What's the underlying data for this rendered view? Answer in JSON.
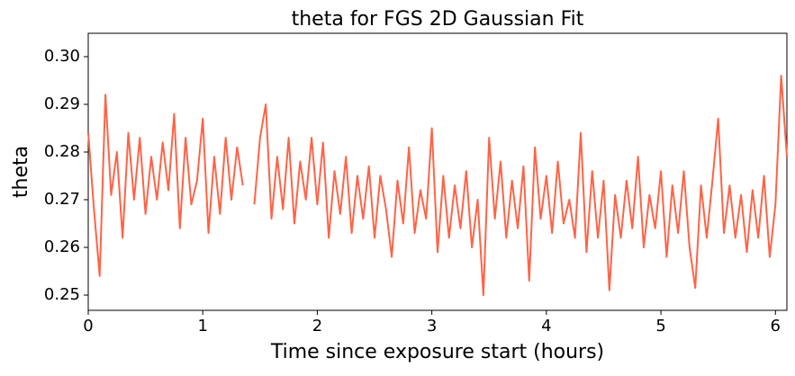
{
  "chart_data": {
    "type": "line",
    "title": "theta for FGS 2D Gaussian Fit",
    "xlabel": "Time since exposure start (hours)",
    "ylabel": "theta",
    "x": [
      0,
      0.05,
      0.1,
      0.15,
      0.2,
      0.25,
      0.3,
      0.35,
      0.4,
      0.45,
      0.5,
      0.55,
      0.6,
      0.65,
      0.7,
      0.75,
      0.8,
      0.85,
      0.9,
      0.95,
      1.0,
      1.05,
      1.1,
      1.15,
      1.2,
      1.25,
      1.3,
      1.35,
      1.4,
      1.45,
      1.5,
      1.55,
      1.6,
      1.65,
      1.7,
      1.75,
      1.8,
      1.85,
      1.9,
      1.95,
      2.0,
      2.05,
      2.1,
      2.15,
      2.2,
      2.25,
      2.3,
      2.35,
      2.4,
      2.45,
      2.5,
      2.55,
      2.6,
      2.65,
      2.7,
      2.75,
      2.8,
      2.85,
      2.9,
      2.95,
      3.0,
      3.05,
      3.1,
      3.15,
      3.2,
      3.25,
      3.3,
      3.35,
      3.4,
      3.45,
      3.5,
      3.55,
      3.6,
      3.65,
      3.7,
      3.75,
      3.8,
      3.85,
      3.9,
      3.95,
      4.0,
      4.05,
      4.1,
      4.15,
      4.2,
      4.25,
      4.3,
      4.35,
      4.4,
      4.45,
      4.5,
      4.55,
      4.6,
      4.65,
      4.7,
      4.75,
      4.8,
      4.85,
      4.9,
      4.95,
      5.0,
      5.05,
      5.1,
      5.15,
      5.2,
      5.25,
      5.3,
      5.35,
      5.4,
      5.45,
      5.5,
      5.55,
      5.6,
      5.65,
      5.7,
      5.75,
      5.8,
      5.85,
      5.9,
      5.95,
      6.0,
      6.05,
      6.1
    ],
    "series": [
      {
        "name": "theta",
        "color": "#ff6347",
        "values": [
          0.284,
          0.268,
          0.254,
          0.292,
          0.271,
          0.28,
          0.262,
          0.284,
          0.27,
          0.283,
          0.267,
          0.279,
          0.27,
          0.282,
          0.272,
          0.288,
          0.264,
          0.283,
          0.269,
          0.274,
          0.287,
          0.263,
          0.279,
          0.267,
          0.283,
          0.27,
          0.281,
          0.273,
          null,
          0.269,
          0.283,
          0.29,
          0.266,
          0.279,
          0.268,
          0.283,
          0.265,
          0.278,
          0.27,
          0.283,
          0.269,
          0.282,
          0.262,
          0.276,
          0.267,
          0.279,
          0.263,
          0.275,
          0.266,
          0.277,
          0.262,
          0.275,
          0.268,
          0.258,
          0.274,
          0.265,
          0.281,
          0.263,
          0.272,
          0.266,
          0.285,
          0.259,
          0.275,
          0.262,
          0.273,
          0.264,
          0.276,
          0.26,
          0.27,
          0.25,
          0.283,
          0.266,
          0.278,
          0.262,
          0.274,
          0.264,
          0.277,
          0.253,
          0.281,
          0.266,
          0.275,
          0.263,
          0.278,
          0.265,
          0.27,
          0.262,
          0.284,
          0.259,
          0.276,
          0.262,
          0.274,
          0.251,
          0.271,
          0.262,
          0.274,
          0.264,
          0.279,
          0.26,
          0.271,
          0.264,
          0.276,
          0.258,
          0.273,
          0.263,
          0.276,
          0.26,
          0.2515,
          0.273,
          0.262,
          0.274,
          0.287,
          0.263,
          0.273,
          0.262,
          0.271,
          0.259,
          0.272,
          0.262,
          0.275,
          0.258,
          0.269,
          0.296,
          0.279
        ]
      }
    ],
    "xlim": [
      0,
      6.1
    ],
    "ylim": [
      0.2468,
      0.3049
    ],
    "xticks": [
      0,
      1,
      2,
      3,
      4,
      5,
      6
    ],
    "yticks": [
      0.25,
      0.26,
      0.27,
      0.28,
      0.29,
      {
        "value": 0.3,
        "label": "0.30"
      }
    ]
  }
}
